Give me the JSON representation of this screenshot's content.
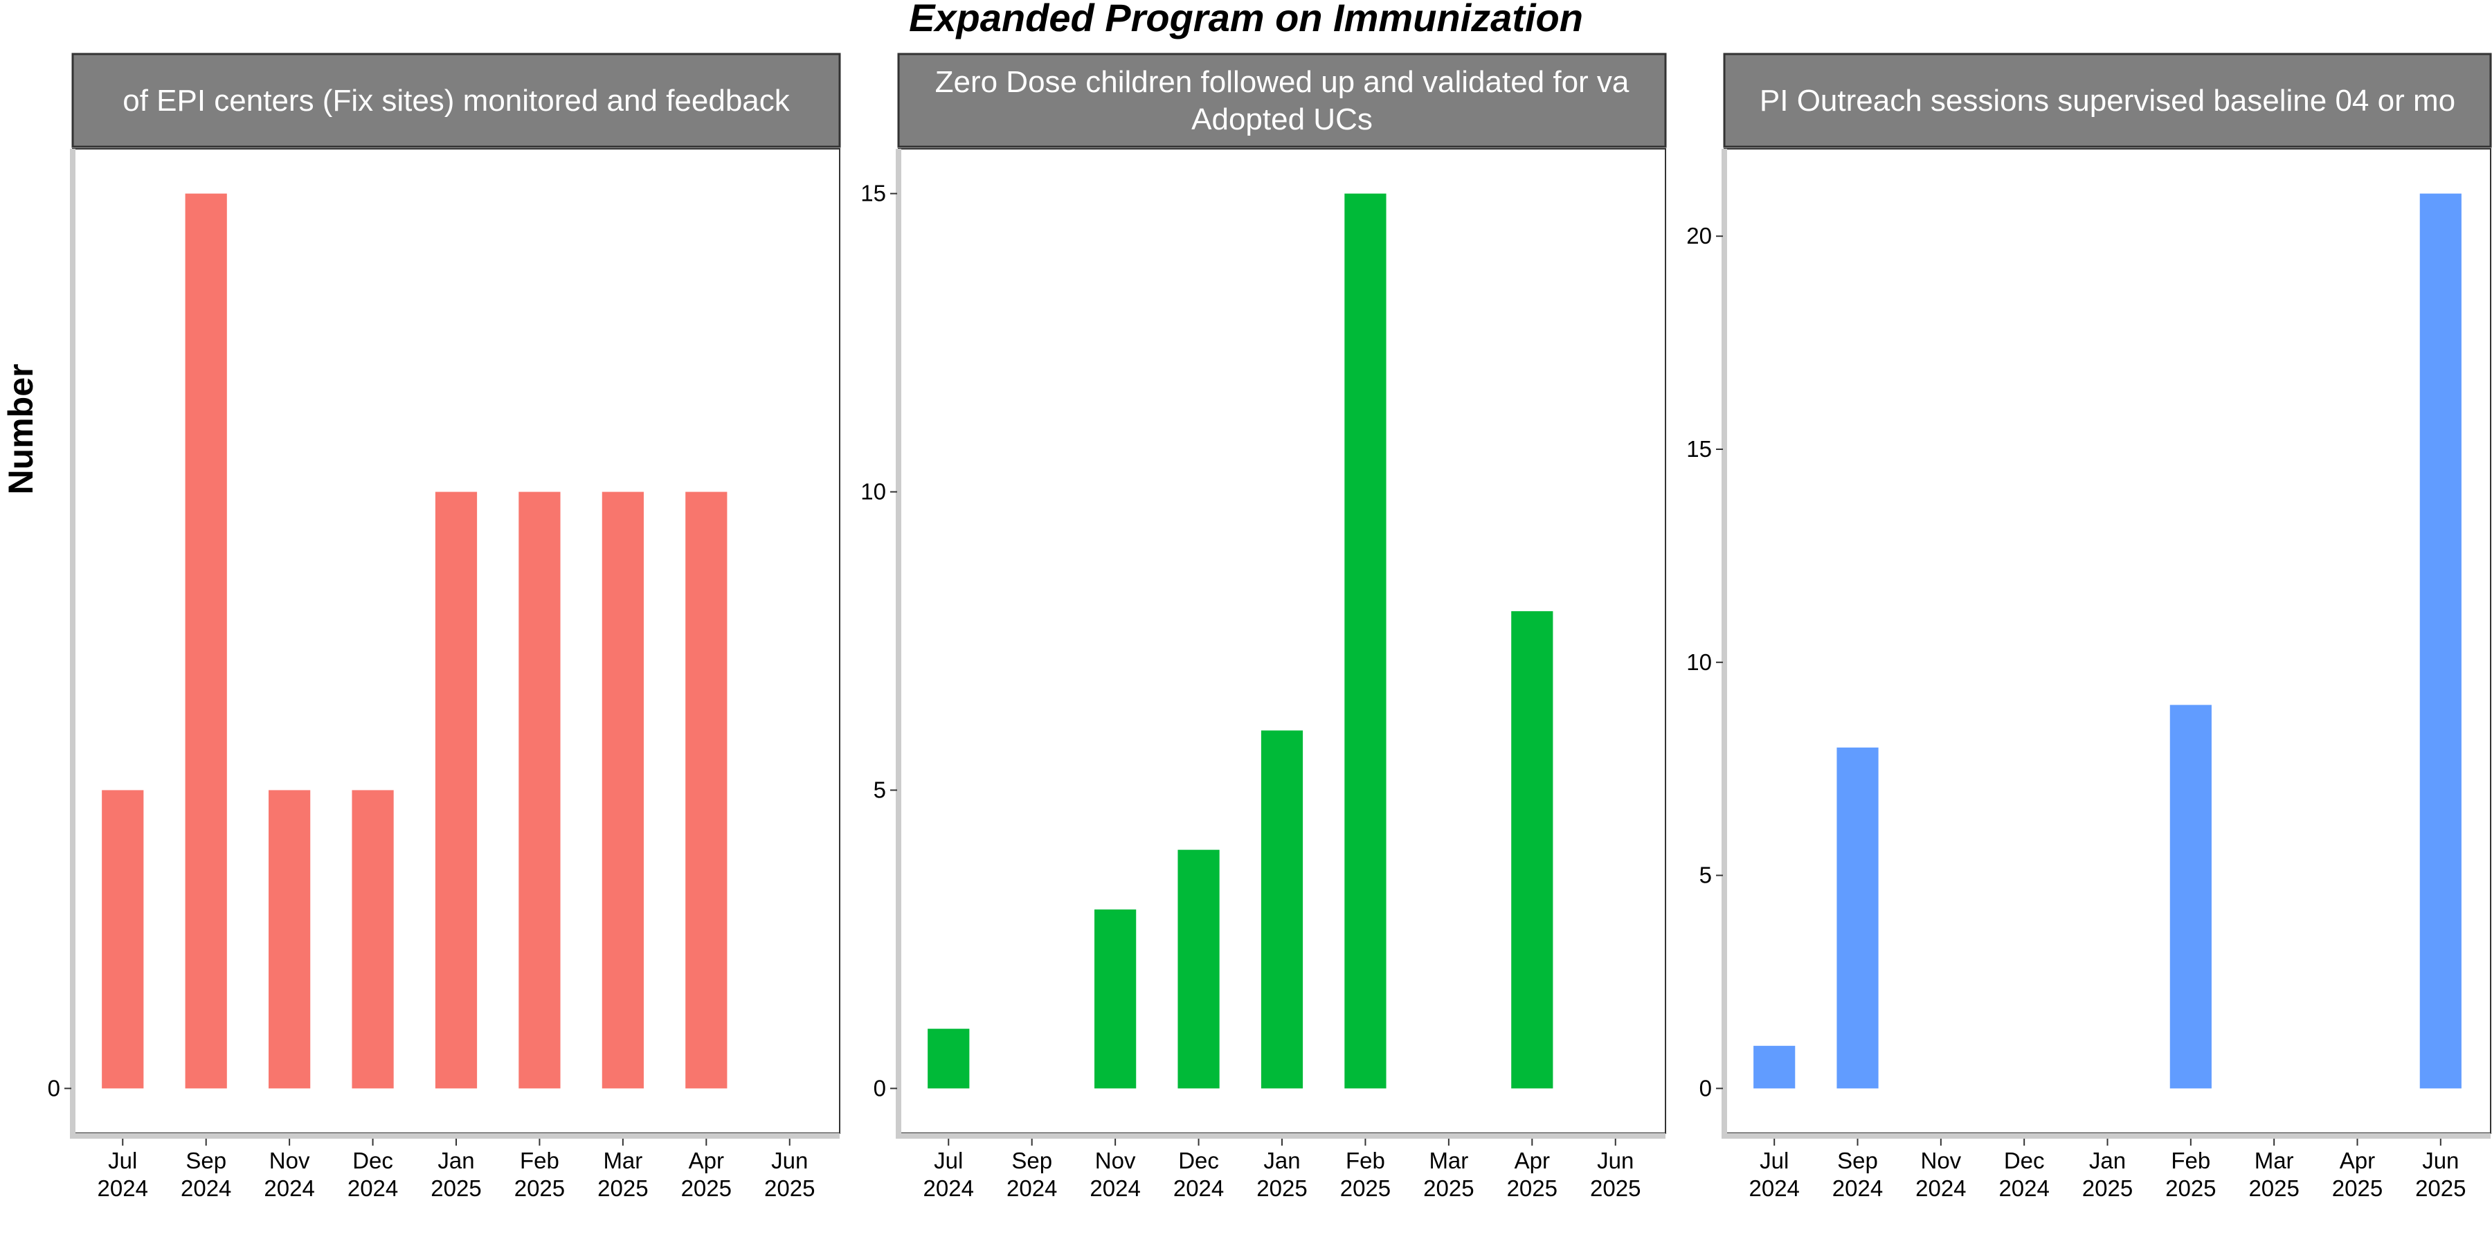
{
  "title": "Expanded Program on Immunization",
  "ylabel": "Number",
  "chart_data": [
    {
      "type": "bar",
      "panel_title": "of EPI centers (Fix sites) monitored and feedback",
      "color": "#F8766D",
      "categories": [
        "Jul 2024",
        "Sep 2024",
        "Nov 2024",
        "Dec 2024",
        "Jan 2025",
        "Feb 2025",
        "Mar 2025",
        "Apr 2025",
        "Jun 2025"
      ],
      "values": [
        1,
        3,
        1,
        1,
        2,
        2,
        2,
        2,
        null
      ],
      "ylim": [
        -0.15,
        3.15
      ],
      "yticks": [
        0
      ]
    },
    {
      "type": "bar",
      "panel_title": "Zero Dose children followed up and validated for va\nAdopted UCs",
      "color": "#00BA38",
      "categories": [
        "Jul 2024",
        "Sep 2024",
        "Nov 2024",
        "Dec 2024",
        "Jan 2025",
        "Feb 2025",
        "Mar 2025",
        "Apr 2025",
        "Jun 2025"
      ],
      "values": [
        1,
        null,
        3,
        4,
        6,
        15,
        null,
        8,
        null
      ],
      "ylim": [
        -0.75,
        15.75
      ],
      "yticks": [
        0,
        5,
        10,
        15
      ]
    },
    {
      "type": "bar",
      "panel_title": "PI Outreach sessions supervised baseline 04 or mo",
      "color": "#619CFF",
      "categories": [
        "Jul 2024",
        "Sep 2024",
        "Nov 2024",
        "Dec 2024",
        "Jan 2025",
        "Feb 2025",
        "Mar 2025",
        "Apr 2025",
        "Jun 2025"
      ],
      "values": [
        1,
        8,
        null,
        null,
        null,
        9,
        null,
        null,
        21
      ],
      "ylim": [
        -1.05,
        22.05
      ],
      "yticks": [
        0,
        5,
        10,
        15,
        20
      ]
    }
  ]
}
